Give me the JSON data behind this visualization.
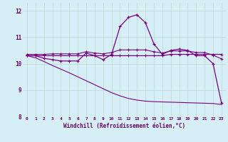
{
  "xlabel": "Windchill (Refroidissement éolien,°C)",
  "bg_color": "#d6eef5",
  "line_color": "#7b0080",
  "grid_color": "#b8d8d0",
  "xlim": [
    -0.5,
    23.5
  ],
  "ylim": [
    8.0,
    12.3
  ],
  "xticks": [
    0,
    1,
    2,
    3,
    4,
    5,
    6,
    7,
    8,
    9,
    10,
    11,
    12,
    13,
    14,
    15,
    16,
    17,
    18,
    19,
    20,
    21,
    22,
    23
  ],
  "yticks": [
    8,
    9,
    10,
    11,
    12
  ],
  "series": {
    "line1_x": [
      0,
      1,
      2,
      3,
      4,
      5,
      6,
      7,
      8,
      9,
      10,
      11,
      12,
      13,
      14,
      15,
      16,
      17,
      18,
      19,
      20,
      21,
      22,
      23
    ],
    "line1_y": [
      10.3,
      10.3,
      10.2,
      10.15,
      10.1,
      10.1,
      10.1,
      10.4,
      10.3,
      10.15,
      10.35,
      11.4,
      11.75,
      11.85,
      11.55,
      10.75,
      10.35,
      10.5,
      10.55,
      10.5,
      10.3,
      10.3,
      10.0,
      8.5
    ],
    "line2_x": [
      0,
      1,
      2,
      3,
      4,
      5,
      6,
      7,
      8,
      9,
      10,
      11,
      12,
      13,
      14,
      15,
      16,
      17,
      18,
      19,
      20,
      21,
      22,
      23
    ],
    "line2_y": [
      10.3,
      10.3,
      10.3,
      10.3,
      10.3,
      10.3,
      10.3,
      10.3,
      10.3,
      10.3,
      10.3,
      10.3,
      10.3,
      10.3,
      10.3,
      10.3,
      10.3,
      10.35,
      10.35,
      10.35,
      10.35,
      10.35,
      10.35,
      10.35
    ],
    "line3_x": [
      0,
      1,
      2,
      3,
      4,
      5,
      6,
      7,
      8,
      9,
      10,
      11,
      12,
      13,
      14,
      15,
      16,
      17,
      18,
      19,
      20,
      21,
      22,
      23
    ],
    "line3_y": [
      10.35,
      10.35,
      10.35,
      10.37,
      10.37,
      10.37,
      10.37,
      10.45,
      10.4,
      10.37,
      10.42,
      10.52,
      10.52,
      10.52,
      10.52,
      10.45,
      10.4,
      10.48,
      10.48,
      10.48,
      10.42,
      10.42,
      10.32,
      10.18
    ],
    "line4_x": [
      0,
      1,
      2,
      3,
      4,
      5,
      6,
      7,
      8,
      9,
      10,
      11,
      12,
      13,
      14,
      15,
      16,
      17,
      18,
      19,
      20,
      21,
      22,
      23
    ],
    "line4_y": [
      10.3,
      10.22,
      10.08,
      9.93,
      9.79,
      9.65,
      9.5,
      9.35,
      9.2,
      9.05,
      8.9,
      8.78,
      8.68,
      8.62,
      8.58,
      8.56,
      8.55,
      8.54,
      8.53,
      8.52,
      8.51,
      8.5,
      8.49,
      8.45
    ]
  }
}
